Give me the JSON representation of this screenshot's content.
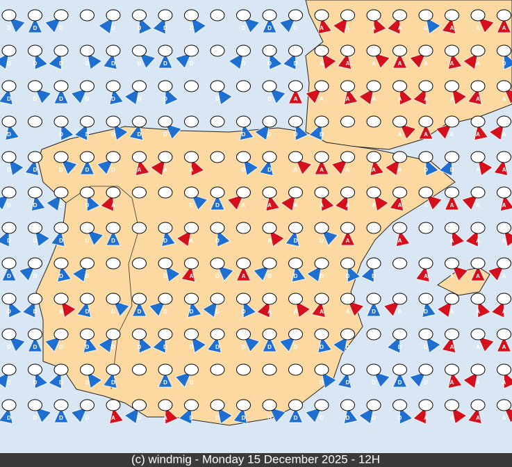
{
  "footer": "(c) windmig - Monday 15 December 2025 - 12H",
  "colors": {
    "D": "#1f6fd1",
    "A": "#d3101c"
  },
  "grid": {
    "rows": [
      [
        "D",
        "D",
        "D",
        null,
        "D",
        "D",
        "D",
        "D",
        null,
        "D",
        "D",
        "D",
        "A",
        "A",
        "A",
        "A",
        "D",
        "A",
        "A",
        "A"
      ],
      [
        "D",
        "D",
        "D",
        "D",
        "D",
        "D",
        "D",
        "D",
        null,
        "D",
        "D",
        "D",
        "A",
        "A",
        "A",
        "A",
        "A",
        "A",
        "A",
        "D"
      ],
      [
        "D",
        "D",
        "D",
        "D",
        "D",
        "D",
        "D",
        null,
        "D",
        null,
        "D",
        "A",
        "A",
        "A",
        "A",
        "A",
        "A",
        "A",
        "A",
        "A"
      ],
      [
        "D",
        null,
        "D",
        "D",
        "D",
        "D",
        "D",
        null,
        null,
        "D",
        "D",
        "D",
        "D",
        null,
        null,
        "A",
        "A",
        "A",
        "A",
        "A"
      ],
      [
        "D",
        "D",
        "D",
        "D",
        "D",
        "A",
        "A",
        "A",
        null,
        "D",
        "D",
        "A",
        "A",
        "A",
        "A",
        "A",
        "D",
        "D",
        "A",
        "A"
      ],
      [
        "D",
        "D",
        "D",
        "D",
        "A",
        null,
        null,
        "D",
        "D",
        "A",
        "A",
        "A",
        "A",
        "A",
        "A",
        "A",
        "A",
        "A",
        "A",
        "A"
      ],
      [
        "D",
        "D",
        "D",
        "D",
        "D",
        null,
        "D",
        "A",
        "D",
        null,
        "A",
        "D",
        "D",
        "A",
        null,
        "A",
        null,
        "A",
        "A",
        "A"
      ],
      [
        "D",
        "D",
        "D",
        "D",
        null,
        null,
        "D",
        "A",
        "D",
        "A",
        "D",
        "D",
        "D",
        "D",
        "D",
        null,
        "A",
        "A",
        "A",
        "A"
      ],
      [
        "D",
        "D",
        "A",
        "D",
        "D",
        "D",
        "D",
        "D",
        "D",
        "D",
        "A",
        "A",
        "A",
        "A",
        "D",
        "A",
        "D",
        "A",
        "A",
        "A"
      ],
      [
        "D",
        "D",
        "D",
        "D",
        "D",
        "D",
        "D",
        "D",
        "D",
        "D",
        "D",
        "D",
        "D",
        "D",
        null,
        "D",
        "D",
        "A",
        "A",
        "A"
      ],
      [
        "D",
        "D",
        "D",
        "D",
        "D",
        null,
        "D",
        "D",
        null,
        null,
        null,
        null,
        "D",
        "D",
        "D",
        "D",
        "D",
        "A",
        "A",
        "A"
      ],
      [
        "D",
        "D",
        "D",
        "D",
        "A",
        "D",
        "A",
        "D",
        "D",
        "D",
        "D",
        "D",
        "D",
        "D",
        "D",
        "D",
        "A",
        "A",
        "A",
        "A"
      ]
    ]
  }
}
